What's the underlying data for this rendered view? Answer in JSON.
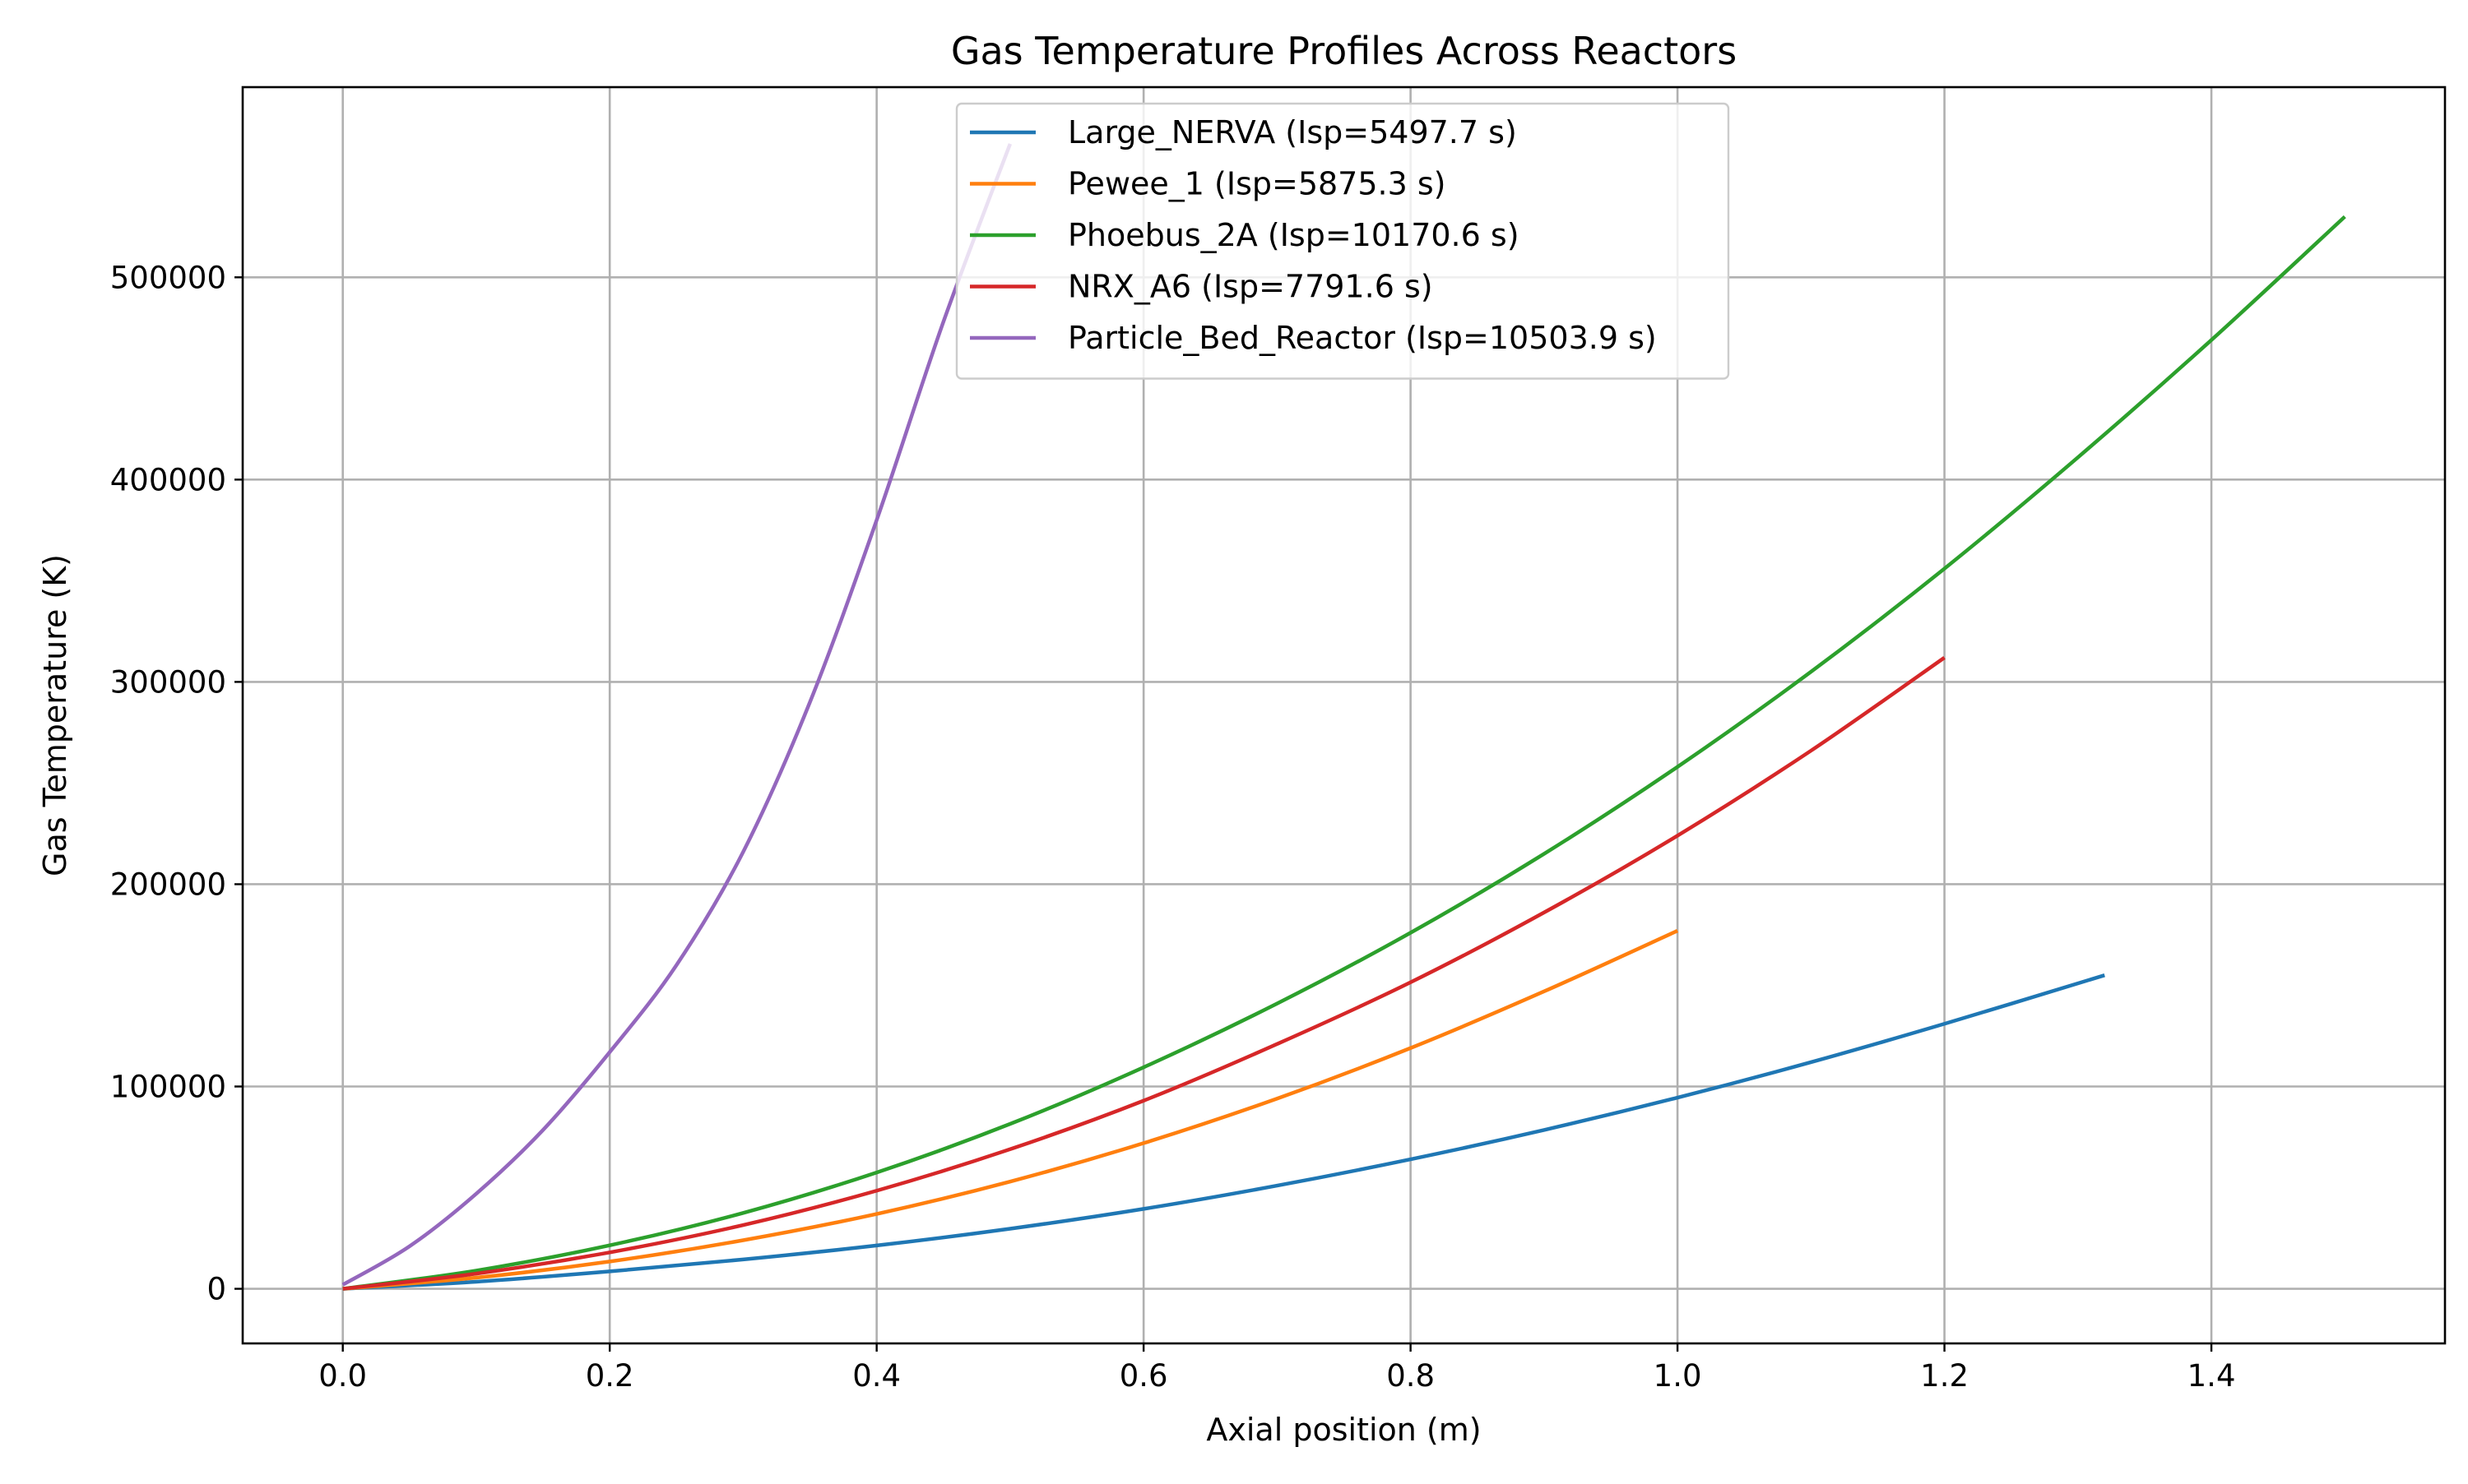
{
  "chart_data": {
    "type": "line",
    "title": "Gas Temperature Profiles Across Reactors",
    "xlabel": "Axial position (m)",
    "ylabel": "Gas Temperature (K)",
    "xlim": [
      -0.075,
      1.575
    ],
    "ylim": [
      -27000,
      594000
    ],
    "xticks": [
      0.0,
      0.2,
      0.4,
      0.6,
      0.8,
      1.0,
      1.2,
      1.4
    ],
    "xtick_labels": [
      "0.0",
      "0.2",
      "0.4",
      "0.6",
      "0.8",
      "1.0",
      "1.2",
      "1.4"
    ],
    "yticks": [
      0,
      100000,
      200000,
      300000,
      400000,
      500000
    ],
    "ytick_labels": [
      "0",
      "100000",
      "200000",
      "300000",
      "400000",
      "500000"
    ],
    "grid": true,
    "legend_position": "top-center",
    "series": [
      {
        "name": "Large_NERVA (Isp=5497.7 s)",
        "color": "#1f77b4",
        "x": [
          0.0,
          0.1,
          0.2,
          0.3,
          0.4,
          0.5,
          0.6,
          0.7,
          0.8,
          0.9,
          1.0,
          1.1,
          1.2,
          1.32
        ],
        "values": [
          0,
          3500,
          8600,
          14500,
          21400,
          29700,
          39500,
          51000,
          64000,
          78500,
          94500,
          112000,
          131000,
          155000
        ]
      },
      {
        "name": "Pewee_1 (Isp=5875.3 s)",
        "color": "#ff7f0e",
        "x": [
          0.0,
          0.1,
          0.2,
          0.3,
          0.4,
          0.5,
          0.6,
          0.7,
          0.8,
          0.9,
          1.0
        ],
        "values": [
          0,
          5500,
          13500,
          24000,
          37000,
          53000,
          72000,
          94000,
          119000,
          147000,
          177000
        ]
      },
      {
        "name": "Phoebus_2A (Isp=10170.6 s)",
        "color": "#2ca02c",
        "x": [
          0.0,
          0.1,
          0.2,
          0.3,
          0.4,
          0.5,
          0.6,
          0.7,
          0.8,
          0.9,
          1.0,
          1.1,
          1.2,
          1.3,
          1.4,
          1.5
        ],
        "values": [
          0,
          9000,
          21500,
          37500,
          57500,
          81500,
          109500,
          141000,
          176000,
          215000,
          258000,
          305000,
          356000,
          411000,
          469000,
          530000
        ]
      },
      {
        "name": "NRX_A6 (Isp=7791.6 s)",
        "color": "#d62728",
        "x": [
          0.0,
          0.1,
          0.2,
          0.3,
          0.4,
          0.5,
          0.6,
          0.7,
          0.8,
          0.9,
          1.0,
          1.1,
          1.2
        ],
        "values": [
          0,
          7500,
          18000,
          31500,
          48500,
          69000,
          93000,
          121000,
          151500,
          186000,
          224000,
          266000,
          312000
        ]
      },
      {
        "name": "Particle_Bed_Reactor (Isp=10503.9 s)",
        "color": "#9467bd",
        "x": [
          0.0,
          0.05,
          0.1,
          0.15,
          0.2,
          0.25,
          0.3,
          0.35,
          0.4,
          0.45,
          0.5
        ],
        "values": [
          2000,
          21000,
          47000,
          78500,
          117000,
          160000,
          216000,
          290000,
          380000,
          478000,
          566000
        ]
      }
    ]
  }
}
